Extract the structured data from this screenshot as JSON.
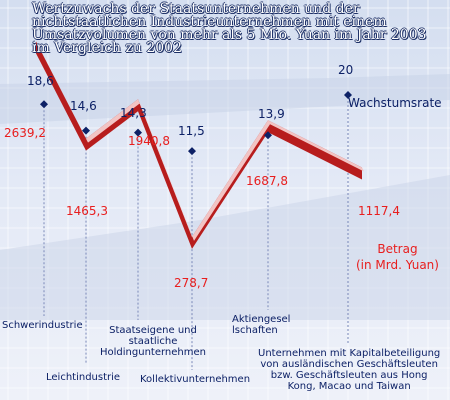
{
  "title": "Wertzuwachs der Staatsunternehmen und der nichtstaatlichen Industrieunternehmen mit einem Umsatzvolumen von mehr als 5 Mio. Yuan im Jahr 2003 im Vergleich zu 2002",
  "legend": {
    "rate": "Wachstumsrate",
    "amount_line1": "Betrag",
    "amount_line2": "(in Mrd. Yuan)"
  },
  "colors": {
    "background": "#dfe6f4",
    "grid": "#ffffff",
    "band": "#c9d3e8",
    "rate_marker": "#0d2166",
    "ribbon_top": "#f2c4c4",
    "ribbon_side": "#b71d1d",
    "amount_text": "#e81e1e"
  },
  "chart_data": {
    "type": "line",
    "categories": [
      "Schwerindustrie",
      "Leichtindustrie",
      "Staatseigene und staatliche Holdingunternehmen",
      "Kollektivunternehmen",
      "Aktiengesellschaften",
      "Unternehmen mit Kapitalbeteiligung von ausländischen Geschäftsleuten bzw. Geschäftsleuten aus Hong Kong, Macao und Taiwan"
    ],
    "category_labels": [
      "Schwerindustrie",
      "Leichtindustrie",
      "Staatseigene und\nstaatliche\nHoldingunternehmen",
      "Kollektivunternehmen",
      "Aktiengesel\nlschaften",
      "Unternehmen mit Kapitalbeteiligung\nvon ausländischen Geschäftsleuten\nbzw. Geschäftsleuten aus Hong\nKong, Macao und Taiwan"
    ],
    "series": [
      {
        "name": "Wachstumsrate",
        "values": [
          18.6,
          14.6,
          14.3,
          11.5,
          13.9,
          20
        ],
        "labels": [
          "18,6",
          "14,6",
          "14,3",
          "11,5",
          "13,9",
          "20"
        ]
      },
      {
        "name": "Betrag (in Mrd. Yuan)",
        "values": [
          2639.2,
          1465.3,
          1940.8,
          278.7,
          1687.8,
          1117.4
        ],
        "labels": [
          "2639,2",
          "1465,3",
          "1940,8",
          "278,7",
          "1687,8",
          "1117,4"
        ]
      }
    ],
    "grid": true
  }
}
